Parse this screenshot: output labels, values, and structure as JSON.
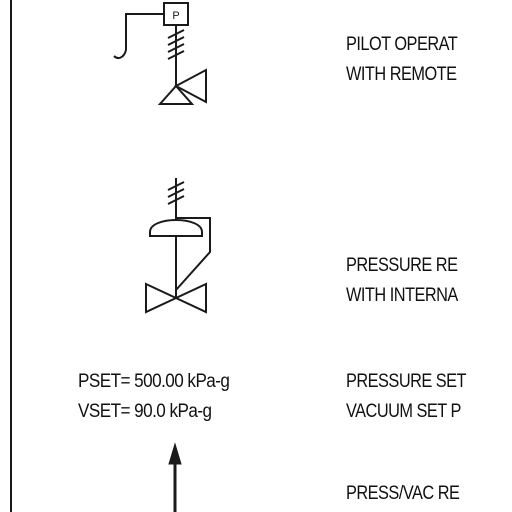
{
  "pilot_valve": {
    "pilot_box_letter": "P",
    "label_line1": "PILOT OPERAT",
    "label_line2": "WITH REMOTE"
  },
  "regulator_valve": {
    "label_line1": "PRESSURE RE",
    "label_line2": "WITH INTERNA"
  },
  "setpoints": {
    "pset": "PSET= 500.00 kPa-g",
    "vset": "VSET= 90.0 kPa-g",
    "label_line1": "PRESSURE SET",
    "label_line2": "VACUUM SET P"
  },
  "press_vac": {
    "label_line1": "PRESS/VAC RE"
  }
}
